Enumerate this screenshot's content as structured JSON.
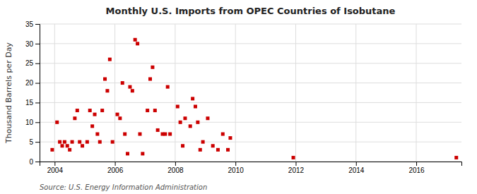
{
  "chart_data": {
    "type": "scatter",
    "title": "Monthly U.S. Imports from OPEC Countries of Isobutane",
    "ylabel": "Thousand Barrels per Day",
    "source": "Source: U.S. Energy Information Administration",
    "color": "#cc0000",
    "marker": "square",
    "grid": true,
    "xlim": [
      2003.5,
      2017.5
    ],
    "xticks": [
      2004,
      2006,
      2008,
      2010,
      2012,
      2014,
      2016
    ],
    "ylim": [
      0,
      35
    ],
    "yticks": [
      0,
      5,
      10,
      15,
      20,
      25,
      30,
      35
    ],
    "x": [
      2003.92,
      2004.08,
      2004.17,
      2004.25,
      2004.33,
      2004.42,
      2004.5,
      2004.58,
      2004.67,
      2004.75,
      2004.83,
      2004.92,
      2005.08,
      2005.17,
      2005.25,
      2005.33,
      2005.42,
      2005.5,
      2005.58,
      2005.67,
      2005.75,
      2005.83,
      2005.92,
      2006.08,
      2006.17,
      2006.25,
      2006.33,
      2006.42,
      2006.5,
      2006.58,
      2006.67,
      2006.75,
      2006.83,
      2006.92,
      2007.08,
      2007.17,
      2007.25,
      2007.33,
      2007.42,
      2007.58,
      2007.67,
      2007.75,
      2007.83,
      2008.08,
      2008.17,
      2008.25,
      2008.33,
      2008.5,
      2008.58,
      2008.67,
      2008.75,
      2008.83,
      2008.92,
      2009.08,
      2009.25,
      2009.42,
      2009.58,
      2009.75,
      2009.83,
      2011.92,
      2017.33
    ],
    "values": [
      3,
      10,
      5,
      4,
      5,
      4,
      3,
      5,
      11,
      13,
      5,
      4,
      5,
      13,
      9,
      12,
      7,
      5,
      13,
      21,
      18,
      26,
      5,
      12,
      11,
      20,
      7,
      2,
      19,
      18,
      31,
      30,
      7,
      2,
      13,
      21,
      24,
      13,
      8,
      7,
      7,
      19,
      7,
      14,
      10,
      4,
      11,
      9,
      16,
      14,
      10,
      3,
      5,
      11,
      4,
      3,
      7,
      3,
      6,
      1,
      1
    ]
  }
}
